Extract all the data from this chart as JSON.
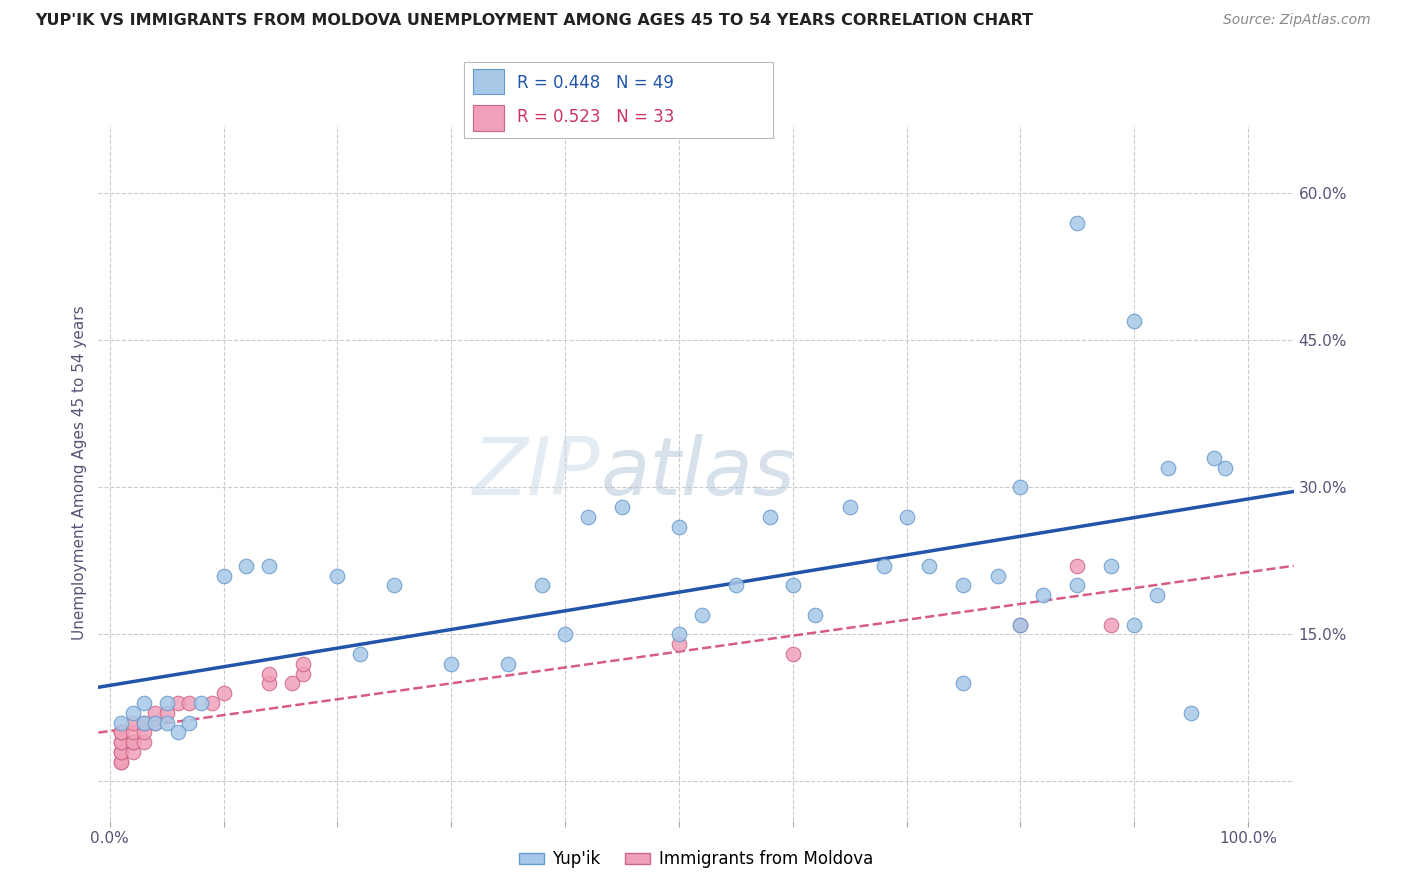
{
  "title": "YUP'IK VS IMMIGRANTS FROM MOLDOVA UNEMPLOYMENT AMONG AGES 45 TO 54 YEARS CORRELATION CHART",
  "source": "Source: ZipAtlas.com",
  "ylabel": "Unemployment Among Ages 45 to 54 years",
  "x_ticks": [
    0.0,
    0.1,
    0.2,
    0.3,
    0.4,
    0.5,
    0.6,
    0.7,
    0.8,
    0.9,
    1.0
  ],
  "y_ticks": [
    0.0,
    0.15,
    0.3,
    0.45,
    0.6
  ],
  "y_tick_labels": [
    "",
    "15.0%",
    "30.0%",
    "45.0%",
    "60.0%"
  ],
  "xlim": [
    -0.01,
    1.04
  ],
  "ylim": [
    -0.04,
    0.67
  ],
  "background_color": "#ffffff",
  "grid_color": "#cccccc",
  "legend_R1": "0.448",
  "legend_N1": "49",
  "legend_R2": "0.523",
  "legend_N2": "33",
  "yupik_color": "#a8c8e8",
  "yupik_edge_color": "#6699cc",
  "moldova_color": "#f0a0b8",
  "moldova_edge_color": "#cc6688",
  "trendline_yupik_color": "#2255aa",
  "trendline_moldova_color": "#cc3366",
  "diagonal_color": "#ddaaaa",
  "yupik_x": [
    0.01,
    0.02,
    0.03,
    0.03,
    0.04,
    0.05,
    0.05,
    0.06,
    0.07,
    0.08,
    0.1,
    0.12,
    0.14,
    0.2,
    0.22,
    0.25,
    0.3,
    0.35,
    0.38,
    0.4,
    0.42,
    0.45,
    0.5,
    0.52,
    0.55,
    0.58,
    0.6,
    0.62,
    0.65,
    0.68,
    0.7,
    0.72,
    0.75,
    0.78,
    0.8,
    0.82,
    0.85,
    0.88,
    0.9,
    0.92,
    0.95,
    0.97,
    0.98,
    0.5,
    0.75,
    0.8,
    0.85,
    0.9,
    0.93
  ],
  "yupik_y": [
    0.06,
    0.07,
    0.06,
    0.08,
    0.06,
    0.06,
    0.08,
    0.05,
    0.06,
    0.08,
    0.21,
    0.22,
    0.22,
    0.21,
    0.13,
    0.2,
    0.12,
    0.12,
    0.2,
    0.15,
    0.27,
    0.28,
    0.15,
    0.17,
    0.2,
    0.27,
    0.2,
    0.17,
    0.28,
    0.22,
    0.27,
    0.22,
    0.2,
    0.21,
    0.16,
    0.19,
    0.2,
    0.22,
    0.16,
    0.19,
    0.07,
    0.33,
    0.32,
    0.26,
    0.1,
    0.3,
    0.57,
    0.47,
    0.32
  ],
  "moldova_x": [
    0.01,
    0.01,
    0.01,
    0.01,
    0.01,
    0.01,
    0.01,
    0.01,
    0.02,
    0.02,
    0.02,
    0.02,
    0.02,
    0.03,
    0.03,
    0.03,
    0.04,
    0.04,
    0.05,
    0.06,
    0.07,
    0.09,
    0.1,
    0.14,
    0.14,
    0.16,
    0.17,
    0.17,
    0.5,
    0.6,
    0.8,
    0.85,
    0.88
  ],
  "moldova_y": [
    0.02,
    0.02,
    0.03,
    0.03,
    0.04,
    0.04,
    0.05,
    0.05,
    0.03,
    0.04,
    0.04,
    0.05,
    0.06,
    0.04,
    0.05,
    0.06,
    0.06,
    0.07,
    0.07,
    0.08,
    0.08,
    0.08,
    0.09,
    0.1,
    0.11,
    0.1,
    0.11,
    0.12,
    0.14,
    0.13,
    0.16,
    0.22,
    0.16
  ]
}
